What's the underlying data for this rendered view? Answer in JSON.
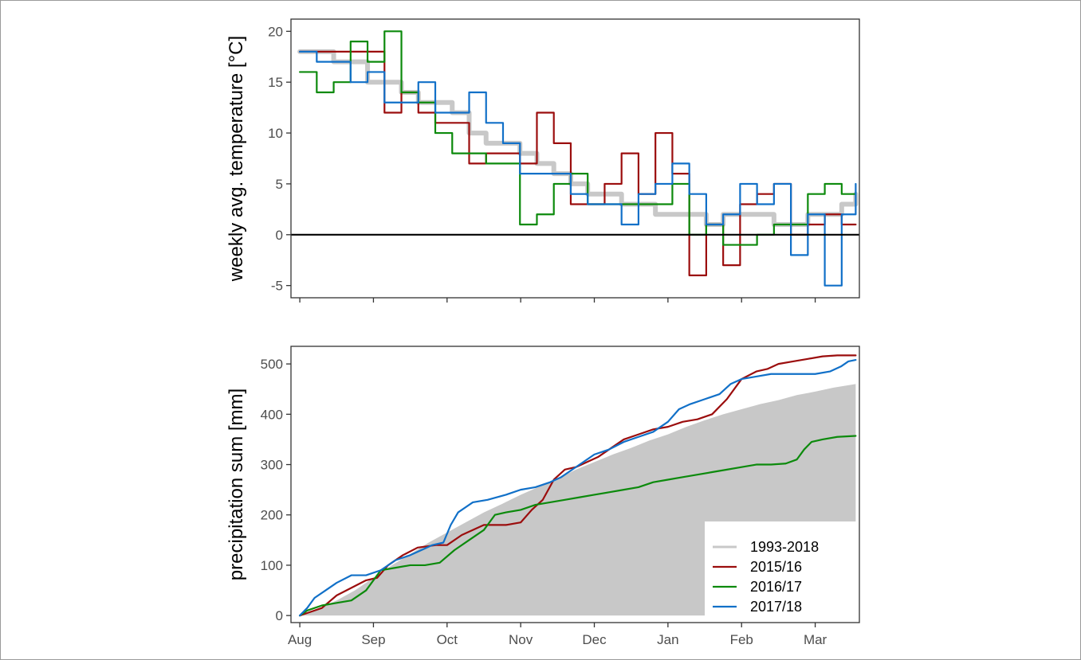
{
  "chart_data": [
    {
      "type": "line",
      "title": "",
      "ylabel": "weekly avg. temperature [°C]",
      "xlabel": "",
      "ylim": [
        -6.2,
        21.2
      ],
      "xlim": [
        -0.12,
        7.6
      ],
      "yticks": [
        -5,
        0,
        5,
        10,
        15,
        20
      ],
      "xtick_positions": [
        0,
        1,
        2,
        3,
        4,
        5,
        6,
        7
      ],
      "x_tick_labels_shown": false,
      "reference_line": 0,
      "step": true,
      "x_unit": "months since Aug 1",
      "series": [
        {
          "key": "clim",
          "color": "#c8c8c8",
          "width": 6,
          "x": [
            0,
            0.23,
            0.46,
            0.69,
            0.92,
            1.15,
            1.38,
            1.61,
            1.84,
            2.07,
            2.3,
            2.53,
            2.76,
            2.99,
            3.22,
            3.45,
            3.68,
            3.91,
            4.14,
            4.37,
            4.6,
            4.83,
            5.06,
            5.29,
            5.52,
            5.75,
            5.98,
            6.21,
            6.44,
            6.67,
            6.9,
            7.13,
            7.36,
            7.55
          ],
          "y": [
            18,
            18,
            17,
            17,
            15,
            15,
            14,
            13,
            13,
            12,
            10,
            9,
            9,
            8,
            7,
            6,
            5,
            4,
            4,
            3,
            3,
            2,
            2,
            2,
            1,
            2,
            2,
            2,
            1,
            1,
            2,
            2,
            3,
            4
          ]
        },
        {
          "key": "y2015",
          "color": "#9b0d0d",
          "width": 2.2,
          "x": [
            0,
            0.23,
            0.46,
            0.69,
            0.92,
            1.15,
            1.38,
            1.61,
            1.84,
            2.07,
            2.3,
            2.53,
            2.76,
            2.99,
            3.22,
            3.45,
            3.68,
            3.91,
            4.14,
            4.37,
            4.6,
            4.83,
            5.06,
            5.29,
            5.52,
            5.75,
            5.98,
            6.21,
            6.44,
            6.67,
            6.9,
            7.13,
            7.36,
            7.55
          ],
          "y": [
            18,
            18,
            18,
            18,
            18,
            12,
            14,
            12,
            11,
            11,
            7,
            8,
            8,
            7,
            12,
            9,
            3,
            3,
            5,
            8,
            4,
            10,
            6,
            -4,
            1,
            -3,
            3,
            4,
            5,
            0,
            1,
            2,
            1,
            1
          ]
        },
        {
          "key": "y2016",
          "color": "#0c8a0c",
          "width": 2.2,
          "x": [
            0,
            0.23,
            0.46,
            0.69,
            0.92,
            1.15,
            1.38,
            1.61,
            1.84,
            2.07,
            2.3,
            2.53,
            2.76,
            2.99,
            3.22,
            3.45,
            3.68,
            3.91,
            4.14,
            4.37,
            4.6,
            4.83,
            5.06,
            5.29,
            5.52,
            5.75,
            5.98,
            6.21,
            6.44,
            6.67,
            6.9,
            7.13,
            7.36,
            7.55
          ],
          "y": [
            16,
            14,
            15,
            19,
            17,
            20,
            14,
            13,
            10,
            8,
            8,
            7,
            7,
            1,
            2,
            5,
            6,
            3,
            3,
            3,
            3,
            3,
            5,
            0,
            1,
            -1,
            -1,
            0,
            1,
            1,
            4,
            5,
            4,
            4
          ]
        },
        {
          "key": "y2017",
          "color": "#1170c8",
          "width": 2.2,
          "x": [
            0,
            0.23,
            0.46,
            0.69,
            0.92,
            1.15,
            1.38,
            1.61,
            1.84,
            2.07,
            2.3,
            2.53,
            2.76,
            2.99,
            3.22,
            3.45,
            3.68,
            3.91,
            4.14,
            4.37,
            4.6,
            4.83,
            5.06,
            5.29,
            5.52,
            5.75,
            5.98,
            6.21,
            6.44,
            6.67,
            6.9,
            7.13,
            7.36,
            7.55
          ],
          "y": [
            18,
            17,
            17,
            15,
            16,
            13,
            13,
            15,
            12,
            12,
            14,
            11,
            9,
            6,
            6,
            6,
            4,
            3,
            3,
            1,
            4,
            5,
            7,
            4,
            1,
            2,
            5,
            3,
            5,
            -2,
            2,
            -5,
            2,
            5
          ]
        }
      ]
    },
    {
      "type": "line",
      "title": "",
      "ylabel": "precipitation sum [mm]",
      "xlabel": "",
      "ylim": [
        -14,
        535
      ],
      "xlim": [
        -0.12,
        7.6
      ],
      "yticks": [
        0,
        100,
        200,
        300,
        400,
        500
      ],
      "x_tick_labels": [
        "Aug",
        "Sep",
        "Oct",
        "Nov",
        "Dec",
        "Jan",
        "Feb",
        "Mar"
      ],
      "xtick_positions": [
        0,
        1,
        2,
        3,
        4,
        5,
        6,
        7
      ],
      "legend_position": "bottom-right",
      "x_unit": "months since Aug 1",
      "series": [
        {
          "key": "clim",
          "name": "1993-2018",
          "color": "#c8c8c8",
          "kind": "area",
          "width": 3,
          "x": [
            0,
            0.25,
            0.5,
            0.75,
            1,
            1.25,
            1.5,
            1.75,
            2,
            2.25,
            2.5,
            2.75,
            3,
            3.25,
            3.5,
            3.75,
            4,
            4.25,
            4.5,
            4.75,
            5,
            5.25,
            5.5,
            5.75,
            6,
            6.25,
            6.5,
            6.75,
            7,
            7.25,
            7.55
          ],
          "y": [
            0,
            14,
            30,
            50,
            75,
            100,
            122,
            145,
            165,
            185,
            205,
            222,
            240,
            256,
            272,
            290,
            305,
            320,
            333,
            348,
            360,
            375,
            388,
            400,
            410,
            420,
            428,
            438,
            445,
            453,
            460
          ],
          "lower_band_start_x": 6.9,
          "lower_band_y": 185
        },
        {
          "key": "y2015",
          "name": "2015/16",
          "color": "#9b0d0d",
          "kind": "line",
          "width": 2.2,
          "x": [
            0,
            0.1,
            0.3,
            0.5,
            0.7,
            0.9,
            1.05,
            1.2,
            1.4,
            1.6,
            1.85,
            2.0,
            2.2,
            2.5,
            2.8,
            3.0,
            3.15,
            3.3,
            3.45,
            3.6,
            3.75,
            3.9,
            4.05,
            4.2,
            4.4,
            4.6,
            4.8,
            5.0,
            5.2,
            5.4,
            5.6,
            5.8,
            6.0,
            6.2,
            6.35,
            6.5,
            6.7,
            6.9,
            7.1,
            7.3,
            7.55
          ],
          "y": [
            0,
            5,
            15,
            40,
            55,
            70,
            75,
            100,
            120,
            135,
            140,
            140,
            160,
            180,
            180,
            185,
            210,
            230,
            270,
            290,
            295,
            305,
            315,
            330,
            350,
            360,
            370,
            375,
            385,
            390,
            400,
            430,
            470,
            485,
            490,
            500,
            505,
            510,
            515,
            517,
            517
          ]
        },
        {
          "key": "y2016",
          "name": "2016/17",
          "color": "#0c8a0c",
          "kind": "line",
          "width": 2.2,
          "x": [
            0,
            0.1,
            0.3,
            0.5,
            0.7,
            0.9,
            1.1,
            1.3,
            1.5,
            1.7,
            1.9,
            2.1,
            2.3,
            2.5,
            2.65,
            2.8,
            3.0,
            3.2,
            3.4,
            3.6,
            3.8,
            4.0,
            4.2,
            4.4,
            4.6,
            4.8,
            5.0,
            5.2,
            5.4,
            5.6,
            5.8,
            6.0,
            6.2,
            6.4,
            6.6,
            6.75,
            6.85,
            6.95,
            7.1,
            7.3,
            7.55
          ],
          "y": [
            0,
            10,
            20,
            25,
            30,
            50,
            90,
            95,
            100,
            100,
            105,
            130,
            150,
            170,
            200,
            205,
            210,
            220,
            225,
            230,
            235,
            240,
            245,
            250,
            255,
            265,
            270,
            275,
            280,
            285,
            290,
            295,
            300,
            300,
            302,
            310,
            330,
            345,
            350,
            355,
            357
          ]
        },
        {
          "key": "y2017",
          "name": "2017/18",
          "color": "#1170c8",
          "kind": "line",
          "width": 2.2,
          "x": [
            0,
            0.1,
            0.2,
            0.35,
            0.5,
            0.7,
            0.9,
            1.1,
            1.3,
            1.5,
            1.65,
            1.8,
            1.95,
            2.05,
            2.15,
            2.35,
            2.55,
            2.8,
            3.0,
            3.2,
            3.4,
            3.55,
            3.7,
            3.85,
            4.0,
            4.2,
            4.4,
            4.6,
            4.8,
            5.0,
            5.15,
            5.3,
            5.5,
            5.7,
            5.85,
            6.0,
            6.2,
            6.4,
            6.6,
            6.8,
            7.0,
            7.2,
            7.35,
            7.45,
            7.55
          ],
          "y": [
            0,
            15,
            35,
            50,
            65,
            80,
            80,
            90,
            110,
            120,
            130,
            140,
            145,
            180,
            205,
            225,
            230,
            240,
            250,
            255,
            265,
            275,
            290,
            305,
            320,
            330,
            345,
            355,
            365,
            385,
            410,
            420,
            430,
            440,
            460,
            470,
            475,
            480,
            480,
            480,
            480,
            485,
            495,
            505,
            508
          ]
        }
      ]
    }
  ]
}
